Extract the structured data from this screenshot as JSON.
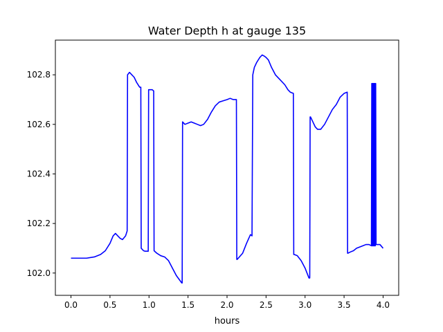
{
  "chart_data": {
    "type": "line",
    "title": "Water Depth h at gauge 135",
    "xlabel": "hours",
    "ylabel": "",
    "xlim": [
      -0.2,
      4.2
    ],
    "ylim": [
      101.91,
      102.94
    ],
    "xticks": [
      0.0,
      0.5,
      1.0,
      1.5,
      2.0,
      2.5,
      3.0,
      3.5,
      4.0
    ],
    "xtick_labels": [
      "0.0",
      "0.5",
      "1.0",
      "1.5",
      "2.0",
      "2.5",
      "3.0",
      "3.5",
      "4.0"
    ],
    "yticks": [
      102.0,
      102.2,
      102.4,
      102.6,
      102.8
    ],
    "ytick_labels": [
      "102.0",
      "102.2",
      "102.4",
      "102.6",
      "102.8"
    ],
    "grid": false,
    "series": [
      {
        "color": "#0000ff",
        "x": [
          0.0,
          0.2,
          0.3,
          0.38,
          0.44,
          0.5,
          0.54,
          0.57,
          0.6,
          0.63,
          0.66,
          0.7,
          0.72,
          0.725,
          0.75,
          0.78,
          0.81,
          0.84,
          0.88,
          0.895,
          0.9,
          0.93,
          0.95,
          0.99,
          0.995,
          1.0,
          1.04,
          1.06,
          1.065,
          1.1,
          1.15,
          1.2,
          1.25,
          1.3,
          1.35,
          1.42,
          1.425,
          1.43,
          1.46,
          1.5,
          1.54,
          1.58,
          1.62,
          1.66,
          1.7,
          1.75,
          1.8,
          1.85,
          1.9,
          1.95,
          2.0,
          2.04,
          2.08,
          2.1,
          2.12,
          2.125,
          2.13,
          2.2,
          2.25,
          2.3,
          2.32,
          2.33,
          2.35,
          2.38,
          2.42,
          2.45,
          2.48,
          2.5,
          2.53,
          2.57,
          2.62,
          2.68,
          2.74,
          2.78,
          2.81,
          2.85,
          2.855,
          2.86,
          2.9,
          2.95,
          3.0,
          3.05,
          3.06,
          3.065,
          3.07,
          3.1,
          3.13,
          3.16,
          3.2,
          3.25,
          3.3,
          3.35,
          3.4,
          3.45,
          3.5,
          3.54,
          3.545,
          3.55,
          3.58,
          3.62,
          3.66,
          3.7,
          3.74,
          3.78,
          3.82,
          3.85,
          3.855,
          3.86,
          3.865,
          3.87,
          3.875,
          3.88,
          3.885,
          3.89,
          3.895,
          3.9,
          3.905,
          3.91,
          3.93,
          3.96,
          4.0
        ],
        "y": [
          102.06,
          102.06,
          102.065,
          102.075,
          102.09,
          102.12,
          102.15,
          102.16,
          102.15,
          102.14,
          102.135,
          102.15,
          102.17,
          102.8,
          102.81,
          102.8,
          102.79,
          102.77,
          102.75,
          102.75,
          102.1,
          102.09,
          102.088,
          102.088,
          102.74,
          102.74,
          102.74,
          102.735,
          102.09,
          102.08,
          102.07,
          102.065,
          102.05,
          102.02,
          101.99,
          101.96,
          101.96,
          102.61,
          102.6,
          102.605,
          102.61,
          102.605,
          102.6,
          102.595,
          102.6,
          102.62,
          102.65,
          102.675,
          102.69,
          102.695,
          102.7,
          102.705,
          102.7,
          102.7,
          102.7,
          102.055,
          102.055,
          102.08,
          102.12,
          102.155,
          102.15,
          102.8,
          102.83,
          102.85,
          102.87,
          102.88,
          102.875,
          102.87,
          102.86,
          102.83,
          102.8,
          102.78,
          102.76,
          102.74,
          102.73,
          102.725,
          102.075,
          102.075,
          102.07,
          102.05,
          102.02,
          101.98,
          101.98,
          102.63,
          102.63,
          102.61,
          102.59,
          102.58,
          102.58,
          102.6,
          102.63,
          102.66,
          102.68,
          102.71,
          102.725,
          102.73,
          102.08,
          102.08,
          102.085,
          102.09,
          102.1,
          102.105,
          102.11,
          102.115,
          102.115,
          102.11,
          102.765,
          102.11,
          102.765,
          102.11,
          102.765,
          102.11,
          102.765,
          102.11,
          102.765,
          102.11,
          102.765,
          102.115,
          102.115,
          102.115,
          102.1
        ]
      }
    ]
  }
}
